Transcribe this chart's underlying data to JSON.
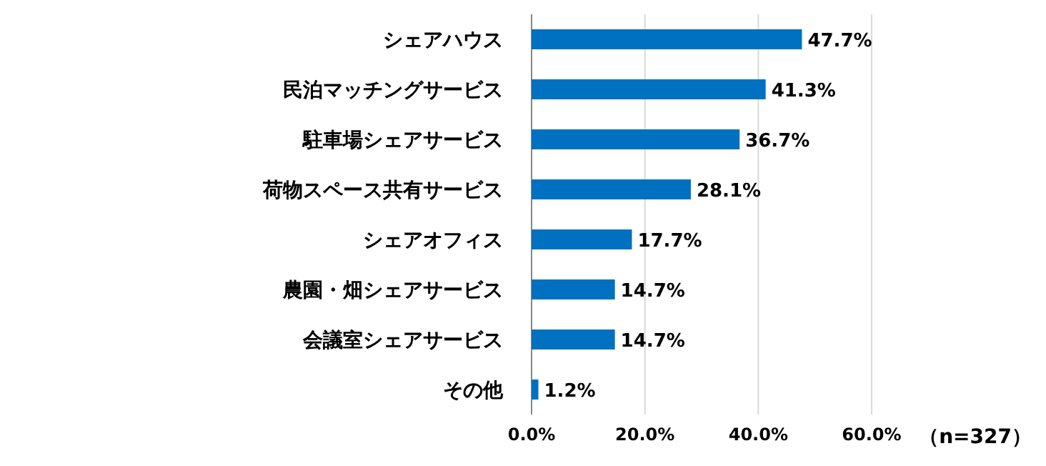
{
  "chart_data": {
    "type": "bar",
    "orientation": "horizontal",
    "categories": [
      "シェアハウス",
      "民泊マッチングサービス",
      "駐車場シェアサービス",
      "荷物スペース共有サービス",
      "シェアオフィス",
      "農園・畑シェアサービス",
      "会議室シェアサービス",
      "その他"
    ],
    "values": [
      47.7,
      41.3,
      36.7,
      28.1,
      17.7,
      14.7,
      14.7,
      1.2
    ],
    "value_labels": [
      "47.7%",
      "41.3%",
      "36.7%",
      "28.1%",
      "17.7%",
      "14.7%",
      "14.7%",
      "1.2%"
    ],
    "color": "#0070c0",
    "xlim": [
      0,
      60
    ],
    "xticks": [
      {
        "value": 0,
        "label": "0.0%"
      },
      {
        "value": 20,
        "label": "20.0%"
      },
      {
        "value": 40,
        "label": "40.0%"
      },
      {
        "value": 60,
        "label": "60.0%"
      }
    ],
    "grid": "x",
    "annotations": [
      "（n=327）"
    ]
  }
}
